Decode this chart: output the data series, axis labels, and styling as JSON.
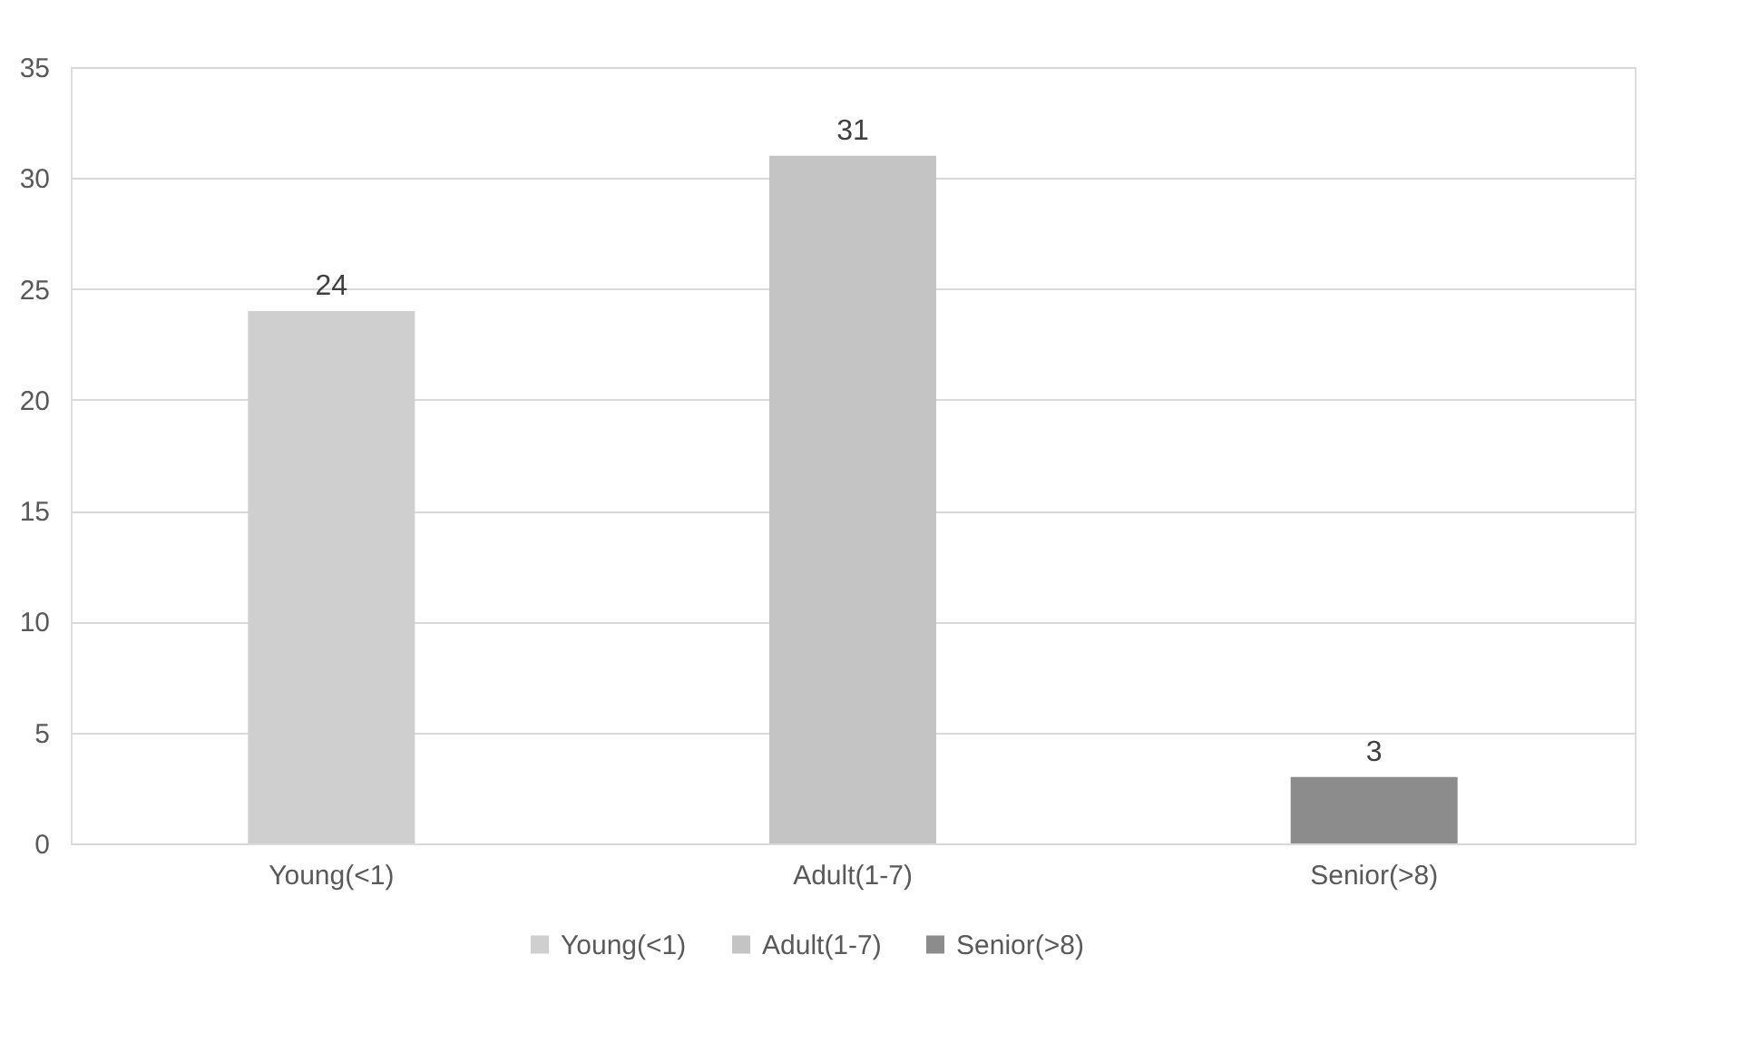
{
  "chart_data": {
    "type": "bar",
    "categories": [
      "Young(<1)",
      "Adult(1-7)",
      "Senior(>8)"
    ],
    "series": [
      {
        "name": "Young(<1)",
        "color": "#cfcfcf",
        "values": [
          24,
          null,
          null
        ]
      },
      {
        "name": "Adult(1-7)",
        "color": "#c4c4c4",
        "values": [
          null,
          31,
          null
        ]
      },
      {
        "name": "Senior(>8)",
        "color": "#8c8c8c",
        "values": [
          null,
          null,
          3
        ]
      }
    ],
    "stacked": true,
    "ylim": [
      0,
      35
    ],
    "yticks": [
      0,
      5,
      10,
      15,
      20,
      25,
      30,
      35
    ],
    "grid": "y",
    "legend": "bottom",
    "data_labels": true
  }
}
